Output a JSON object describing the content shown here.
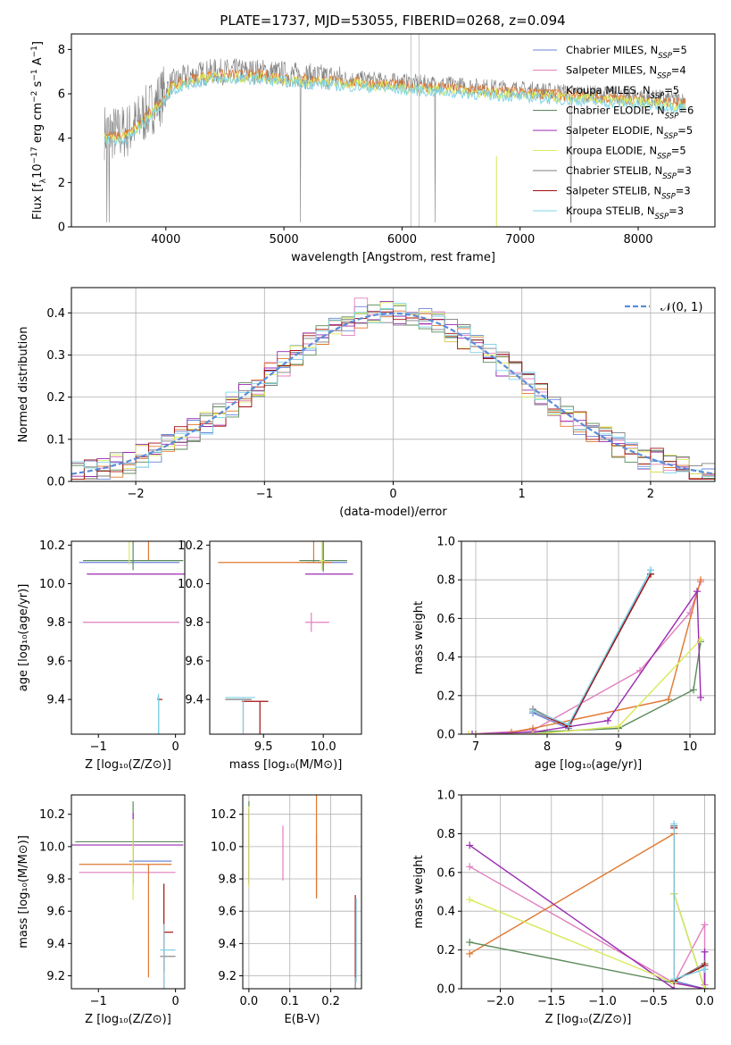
{
  "colors": [
    "#6b85d9",
    "#e07fbe",
    "#e07830",
    "#5a8a5a",
    "#9a2ab0",
    "#d9ea5a",
    "#7f7f7f",
    "#a01010",
    "#7fd3e6"
  ],
  "chart_data": [
    {
      "id": "spectrum",
      "type": "line",
      "title": "PLATE=1737, MJD=53055, FIBERID=0268, z=0.094",
      "xlabel": "wavelength [Angstrom, rest frame]",
      "ylabel_html": "Flux [f<tspan baseline-shift='sub' font-size='9'>λ</tspan>10<tspan baseline-shift='super' font-size='9'>−17</tspan> erg cm<tspan baseline-shift='super' font-size='9'>−2</tspan> s<tspan baseline-shift='super' font-size='9'>−1</tspan> A<tspan baseline-shift='super' font-size='9'>−1</tspan>]",
      "xlim": [
        3200,
        8650
      ],
      "ylim": [
        0,
        8.7
      ],
      "xticks": [
        4000,
        5000,
        6000,
        7000,
        8000
      ],
      "yticks": [
        0,
        2,
        4,
        6,
        8
      ],
      "grid": false,
      "legend_position": "right",
      "legend": [
        {
          "label": "Chabrier MILES, N",
          "sub": "SSP",
          "tail": "=5"
        },
        {
          "label": "Salpeter MILES, N",
          "sub": "SSP",
          "tail": "=4"
        },
        {
          "label": "Kroupa MILES, N",
          "sub": "SSP",
          "tail": "=5"
        },
        {
          "label": "Chabrier ELODIE, N",
          "sub": "SSP",
          "tail": "=6"
        },
        {
          "label": "Salpeter ELODIE, N",
          "sub": "SSP",
          "tail": "=5"
        },
        {
          "label": "Kroupa ELODIE, N",
          "sub": "SSP",
          "tail": "=5"
        },
        {
          "label": "Chabrier STELIB, N",
          "sub": "SSP",
          "tail": "=3"
        },
        {
          "label": "Salpeter STELIB, N",
          "sub": "SSP",
          "tail": "=3"
        },
        {
          "label": "Kroupa STELIB, N",
          "sub": "SSP",
          "tail": "=3"
        }
      ],
      "continuum": {
        "x": [
          3480,
          3600,
          3700,
          3850,
          3950,
          4050,
          4200,
          4400,
          4600,
          4800,
          5000,
          5200,
          5500,
          5800,
          6100,
          6400,
          6700,
          7000,
          7300,
          7600,
          7900,
          8200,
          8400
        ],
        "y": [
          4.3,
          4.2,
          4.4,
          5.2,
          5.8,
          6.5,
          6.8,
          7.0,
          7.0,
          7.0,
          6.9,
          6.8,
          6.7,
          6.6,
          6.5,
          6.4,
          6.3,
          6.2,
          6.1,
          6.0,
          5.9,
          5.8,
          5.7
        ]
      }
    },
    {
      "id": "residuals",
      "type": "histogram",
      "xlabel": "(data-model)/error",
      "ylabel": "Normed distribution",
      "xlim": [
        -2.5,
        2.5
      ],
      "ylim": [
        0,
        0.46
      ],
      "xticks": [
        -2,
        -1,
        0,
        1,
        2
      ],
      "yticks": [
        0.0,
        0.1,
        0.2,
        0.3,
        0.4
      ],
      "grid": true,
      "legend_position": "top-right",
      "legend_label": "𝒩(0, 1)",
      "bins": {
        "start": -2.5,
        "width": 0.1,
        "count": 50
      },
      "curve": "normal(0,1)"
    },
    {
      "id": "age-vs-Z",
      "type": "errorbar",
      "xlabel": "Z [log₁₀(Z/Z⊙)]",
      "ylabel": "age  [log₁₀(age/yr)]",
      "xlim": [
        -1.35,
        0.12
      ],
      "ylim": [
        9.22,
        10.22
      ],
      "xticks": [
        -1,
        0
      ],
      "yticks": [
        9.4,
        9.6,
        9.8,
        10.0,
        10.2
      ],
      "grid": false,
      "points": [
        {
          "x": -0.7,
          "y": 10.11,
          "xe": [
            0.55,
            0.75
          ],
          "ye": [
            0,
            0
          ],
          "c": 0
        },
        {
          "x": -0.2,
          "y": 9.8,
          "xe": [
            1.0,
            0.25
          ],
          "ye": [
            0,
            0
          ],
          "c": 1
        },
        {
          "x": -0.35,
          "y": 10.12,
          "xe": [
            0,
            0
          ],
          "ye": [
            0.85,
            0
          ],
          "c": 2
        },
        {
          "x": -0.55,
          "y": 10.12,
          "xe": [
            0.65,
            0.65
          ],
          "ye": [
            0.2,
            0.05
          ],
          "c": 3
        },
        {
          "x": -0.6,
          "y": 10.05,
          "xe": [
            0.55,
            0.75
          ],
          "ye": [
            0,
            0
          ],
          "c": 4
        },
        {
          "x": -0.6,
          "y": 10.1,
          "xe": [
            0,
            0
          ],
          "ye": [
            0.18,
            0
          ],
          "c": 5
        },
        {
          "x": -0.22,
          "y": 9.4,
          "xe": [
            0.02,
            0.0
          ],
          "ye": [
            0.02,
            0.42
          ],
          "c": 6
        },
        {
          "x": -0.22,
          "y": 9.4,
          "xe": [
            0,
            0.05
          ],
          "ye": [
            0,
            0
          ],
          "c": 7
        },
        {
          "x": -0.22,
          "y": 9.41,
          "xe": [
            0.02,
            0.0
          ],
          "ye": [
            0.02,
            0.41
          ],
          "c": 8
        }
      ]
    },
    {
      "id": "age-vs-mass",
      "type": "errorbar",
      "xlabel": "mass [log₁₀(M/M⊙)]",
      "ylabel": "",
      "xlim": [
        9.05,
        10.32
      ],
      "ylim": [
        9.22,
        10.22
      ],
      "xticks": [
        9.5,
        10.0
      ],
      "yticks": [
        9.4,
        9.6,
        9.8,
        10.0,
        10.2
      ],
      "grid": false,
      "points": [
        {
          "x": 10.0,
          "y": 10.11,
          "xe": [
            0.15,
            0.2
          ],
          "ye": [
            0.1,
            0.05
          ],
          "c": 0
        },
        {
          "x": 9.9,
          "y": 9.8,
          "xe": [
            0.05,
            0.15
          ],
          "ye": [
            0.05,
            0.05
          ],
          "c": 1
        },
        {
          "x": 9.92,
          "y": 10.11,
          "xe": [
            0.8,
            0.15
          ],
          "ye": [
            0.85,
            0.0
          ],
          "c": 2
        },
        {
          "x": 10.0,
          "y": 10.12,
          "xe": [
            0.2,
            0.2
          ],
          "ye": [
            0.2,
            0.05
          ],
          "c": 3
        },
        {
          "x": 10.05,
          "y": 10.05,
          "xe": [
            0.2,
            0.2
          ],
          "ye": [
            0,
            0
          ],
          "c": 4
        },
        {
          "x": 9.99,
          "y": 10.12,
          "xe": [
            0.02,
            0.02
          ],
          "ye": [
            0.2,
            0.05
          ],
          "c": 5
        },
        {
          "x": 9.33,
          "y": 9.4,
          "xe": [
            0.15,
            0.07
          ],
          "ye": [
            0,
            0.4
          ],
          "c": 6
        },
        {
          "x": 9.47,
          "y": 9.39,
          "xe": [
            0.15,
            0.07
          ],
          "ye": [
            0,
            0.38
          ],
          "c": 7
        },
        {
          "x": 9.33,
          "y": 9.41,
          "xe": [
            0.15,
            0.1
          ],
          "ye": [
            0,
            0.41
          ],
          "c": 8
        }
      ]
    },
    {
      "id": "weight-vs-age",
      "type": "line",
      "xlabel": "age  [log₁₀(age/yr)]",
      "ylabel": "mass weight",
      "xlim": [
        6.8,
        10.35
      ],
      "ylim": [
        0,
        1.0
      ],
      "xticks": [
        7,
        8,
        9,
        10
      ],
      "yticks": [
        0.0,
        0.2,
        0.4,
        0.6,
        0.8,
        1.0
      ],
      "grid": true,
      "series": [
        {
          "c": 0,
          "x": [
            7.8,
            8.3,
            9.45
          ],
          "y": [
            0.11,
            0.03,
            0.85
          ]
        },
        {
          "c": 1,
          "x": [
            6.9,
            7.8,
            9.3,
            10.0,
            10.15
          ],
          "y": [
            0.0,
            0.02,
            0.33,
            0.63,
            0.79
          ]
        },
        {
          "c": 2,
          "x": [
            7.5,
            7.8,
            9.7,
            10.15
          ],
          "y": [
            0.01,
            0.03,
            0.18,
            0.8
          ]
        },
        {
          "c": 3,
          "x": [
            7.0,
            7.8,
            9.0,
            10.05,
            10.15
          ],
          "y": [
            0.0,
            0.01,
            0.03,
            0.23,
            0.48
          ]
        },
        {
          "c": 4,
          "x": [
            6.95,
            7.8,
            8.85,
            10.1,
            10.15
          ],
          "y": [
            0.0,
            0.01,
            0.07,
            0.74,
            0.19
          ]
        },
        {
          "c": 5,
          "x": [
            6.9,
            7.8,
            9.0,
            10.15
          ],
          "y": [
            0.0,
            0.0,
            0.04,
            0.49
          ]
        },
        {
          "c": 6,
          "x": [
            7.8,
            8.3,
            9.45
          ],
          "y": [
            0.13,
            0.04,
            0.83
          ]
        },
        {
          "c": 7,
          "x": [
            7.8,
            8.3,
            9.45
          ],
          "y": [
            0.12,
            0.04,
            0.83
          ]
        },
        {
          "c": 8,
          "x": [
            7.8,
            8.3,
            9.45
          ],
          "y": [
            0.12,
            0.05,
            0.85
          ]
        }
      ]
    },
    {
      "id": "mass-vs-Z",
      "type": "errorbar",
      "xlabel": "Z [log₁₀(Z/Z⊙)]",
      "ylabel": "mass [log₁₀(M/M⊙)]",
      "xlim": [
        -1.35,
        0.12
      ],
      "ylim": [
        9.12,
        10.32
      ],
      "xticks": [
        -1,
        0
      ],
      "yticks": [
        9.2,
        9.4,
        9.6,
        9.8,
        10.0,
        10.2
      ],
      "grid": false,
      "points": [
        {
          "x": -0.3,
          "y": 9.91,
          "xe": [
            0.3,
            0.25
          ],
          "ye": [
            0,
            0
          ],
          "c": 0
        },
        {
          "x": -0.45,
          "y": 9.84,
          "xe": [
            0.8,
            0.45
          ],
          "ye": [
            0,
            0
          ],
          "c": 1
        },
        {
          "x": -0.35,
          "y": 9.89,
          "xe": [
            0.9,
            0.3
          ],
          "ye": [
            0,
            0.7
          ],
          "c": 2
        },
        {
          "x": -0.55,
          "y": 10.03,
          "xe": [
            0.75,
            0.65
          ],
          "ye": [
            0.25,
            0.25
          ],
          "c": 3
        },
        {
          "x": -0.55,
          "y": 10.01,
          "xe": [
            0.8,
            0.65
          ],
          "ye": [
            0.2,
            0.25
          ],
          "c": 4
        },
        {
          "x": -0.55,
          "y": 9.97,
          "xe": [
            0,
            0
          ],
          "ye": [
            0.2,
            0.3
          ],
          "c": 5
        },
        {
          "x": -0.15,
          "y": 9.32,
          "xe": [
            0.05,
            0.15
          ],
          "ye": [
            0,
            0.4
          ],
          "c": 6
        },
        {
          "x": -0.15,
          "y": 9.47,
          "xe": [
            0,
            0.12
          ],
          "ye": [
            0.3,
            0.25
          ],
          "c": 7
        },
        {
          "x": -0.15,
          "y": 9.36,
          "xe": [
            0.05,
            0.15
          ],
          "ye": [
            0.16,
            0.35
          ],
          "c": 8
        }
      ]
    },
    {
      "id": "mass-vs-EBV",
      "type": "errorbar",
      "xlabel": "E(B-V)",
      "ylabel": "",
      "xlim": [
        -0.015,
        0.275
      ],
      "ylim": [
        9.12,
        10.32
      ],
      "xticks": [
        0.0,
        0.1,
        0.2
      ],
      "yticks": [
        9.2,
        9.4,
        9.6,
        9.8,
        10.0,
        10.2
      ],
      "grid": true,
      "points": [
        {
          "x": 0.165,
          "y": 9.88,
          "xe": [
            0,
            0
          ],
          "ye": [
            0.2,
            0.2
          ],
          "c": 0
        },
        {
          "x": 0.083,
          "y": 9.96,
          "xe": [
            0,
            0
          ],
          "ye": [
            0.17,
            0.17
          ],
          "c": 1
        },
        {
          "x": 0.165,
          "y": 9.88,
          "xe": [
            0,
            0
          ],
          "ye": [
            0.7,
            0.2
          ],
          "c": 2
        },
        {
          "x": 0.0,
          "y": 10.03,
          "xe": [
            0,
            0
          ],
          "ye": [
            0.25,
            0.25
          ],
          "c": 3
        },
        {
          "x": 0.0,
          "y": 10.01,
          "xe": [
            0,
            0
          ],
          "ye": [
            0.22,
            0.25
          ],
          "c": 4
        },
        {
          "x": 0.0,
          "y": 10.0,
          "xe": [
            0,
            0
          ],
          "ye": [
            0.25,
            0.25
          ],
          "c": 5
        },
        {
          "x": 0.26,
          "y": 9.42,
          "xe": [
            0,
            0
          ],
          "ye": [
            0.25,
            0.3
          ],
          "c": 6
        },
        {
          "x": 0.26,
          "y": 9.45,
          "xe": [
            0,
            0
          ],
          "ye": [
            0.25,
            0.26
          ],
          "c": 7
        },
        {
          "x": 0.262,
          "y": 9.43,
          "xe": [
            0,
            0
          ],
          "ye": [
            0.25,
            0.27
          ],
          "c": 8
        }
      ]
    },
    {
      "id": "weight-vs-Z",
      "type": "line",
      "xlabel": "Z [log₁₀(Z/Z⊙)]",
      "ylabel": "mass weight",
      "xlim": [
        -2.38,
        0.1
      ],
      "ylim": [
        0,
        1.0
      ],
      "xticks": [
        -2.0,
        -1.5,
        -1.0,
        -0.5,
        0.0
      ],
      "yticks": [
        0.0,
        0.2,
        0.4,
        0.6,
        0.8,
        1.0
      ],
      "grid": true,
      "series": [
        {
          "c": 0,
          "x": [
            -0.3,
            -0.3,
            0.0,
            0.0
          ],
          "y": [
            0.84,
            0.04,
            0.0,
            0.12
          ]
        },
        {
          "c": 1,
          "x": [
            -2.3,
            -0.3,
            0.0,
            0.0
          ],
          "y": [
            0.63,
            0.03,
            0.33,
            0.02
          ]
        },
        {
          "c": 2,
          "x": [
            -2.3,
            -0.3,
            -0.3,
            0.0
          ],
          "y": [
            0.18,
            0.8,
            0.03,
            0.0
          ]
        },
        {
          "c": 3,
          "x": [
            -2.3,
            -0.3,
            -0.3,
            0.0,
            0.0
          ],
          "y": [
            0.24,
            0.03,
            0.49,
            0.0,
            0.1
          ]
        },
        {
          "c": 4,
          "x": [
            -2.3,
            -0.3,
            -0.3,
            0.0,
            0.0
          ],
          "y": [
            0.74,
            0.0,
            0.03,
            0.0,
            0.19
          ]
        },
        {
          "c": 5,
          "x": [
            -2.3,
            -0.3,
            -0.3,
            0.0
          ],
          "y": [
            0.46,
            0.03,
            0.49,
            0.0
          ]
        },
        {
          "c": 6,
          "x": [
            -0.3,
            -0.3,
            0.0
          ],
          "y": [
            0.84,
            0.04,
            0.13
          ]
        },
        {
          "c": 7,
          "x": [
            -0.3,
            -0.3,
            0.0
          ],
          "y": [
            0.83,
            0.04,
            0.12
          ]
        },
        {
          "c": 8,
          "x": [
            -0.3,
            -0.3,
            0.0
          ],
          "y": [
            0.85,
            0.05,
            0.1
          ]
        }
      ]
    }
  ]
}
